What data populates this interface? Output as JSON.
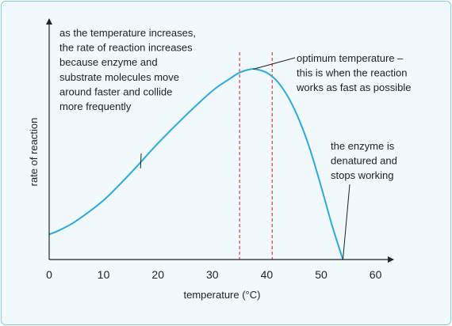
{
  "chart_data": {
    "type": "line",
    "xlabel": "temperature (°C)",
    "ylabel": "rate of reaction",
    "xlim": [
      0,
      65
    ],
    "ylim": [
      0,
      1
    ],
    "x_ticks": [
      "0",
      "10",
      "20",
      "30",
      "40",
      "50",
      "60"
    ],
    "y_ticks": [],
    "grid": false,
    "line_color": "#29abe2",
    "marker_color": "#e03a3e",
    "optimum_range_markers": [
      35,
      41
    ],
    "series": [
      {
        "x": [
          0,
          2,
          5,
          10,
          15,
          20,
          25,
          30,
          33,
          35,
          37,
          38,
          40,
          42,
          44,
          46,
          48,
          50,
          52,
          54
        ],
        "y": [
          0.11,
          0.13,
          0.17,
          0.26,
          0.38,
          0.51,
          0.63,
          0.74,
          0.79,
          0.82,
          0.835,
          0.835,
          0.82,
          0.78,
          0.71,
          0.61,
          0.48,
          0.32,
          0.15,
          0.0
        ]
      }
    ],
    "annotations": [
      {
        "id": "rise",
        "lines": [
          "as the temperature increases,",
          "the rate of reaction increases",
          "because enzyme and",
          "substrate molecules move",
          "around faster and collide",
          "more frequently"
        ],
        "point": [
          16.8,
          0.4
        ]
      },
      {
        "id": "optimum",
        "lines": [
          "optimum temperature –",
          "this is when the reaction",
          "works as fast as possible"
        ],
        "point": [
          37.5,
          0.835
        ]
      },
      {
        "id": "denatured",
        "lines": [
          "the enzyme is",
          "denatured and",
          "stops working"
        ],
        "point": [
          54,
          0.0
        ]
      }
    ]
  }
}
